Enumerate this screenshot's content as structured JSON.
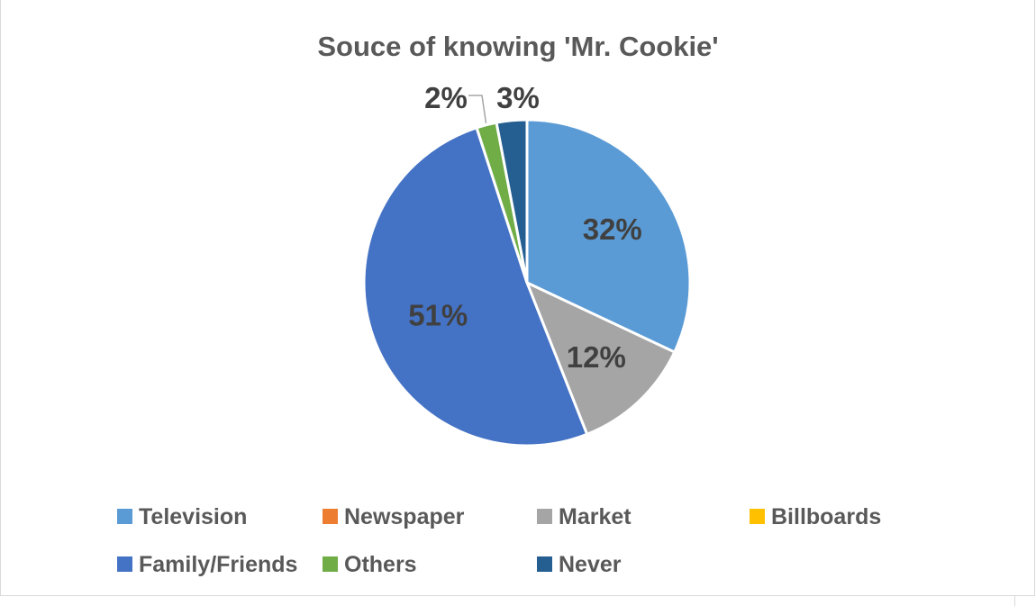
{
  "chart_data": {
    "type": "pie",
    "title": "Souce of knowing 'Mr. Cookie'",
    "categories": [
      "Television",
      "Newspaper",
      "Market",
      "Billboards",
      "Family/Friends",
      "Others",
      "Never"
    ],
    "values": [
      32,
      0,
      12,
      0,
      51,
      2,
      3
    ],
    "labels": [
      "32%",
      "",
      "12%",
      "",
      "51%",
      "2%",
      "3%"
    ],
    "colors": [
      "#5b9bd5",
      "#ed7d31",
      "#a5a5a5",
      "#ffc000",
      "#4472c4",
      "#70ad47",
      "#255e91"
    ],
    "legend_position": "bottom"
  }
}
